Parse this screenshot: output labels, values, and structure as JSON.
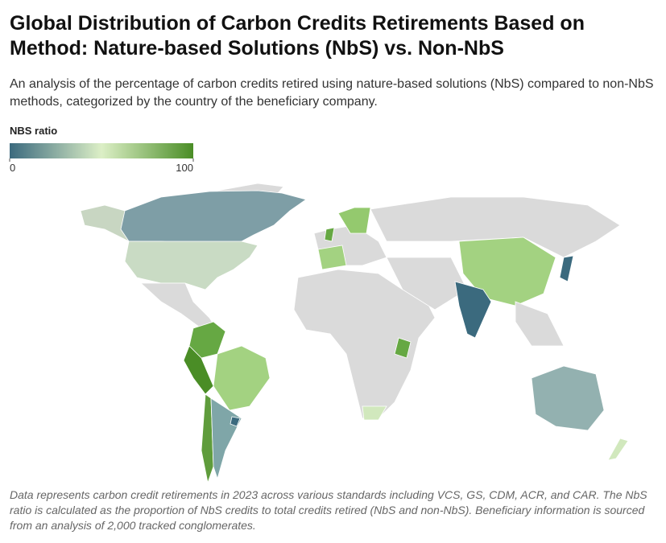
{
  "header": {
    "title": "Global Distribution of Carbon Credits Retirements Based on Method: Nature-based Solutions (NbS) vs. Non-NbS",
    "subtitle": "An analysis of the percentage of carbon credits retired using nature-based solutions (NbS) compared to non-NbS methods, categorized by the country of the beneficiary company."
  },
  "legend": {
    "title": "NBS ratio",
    "min": 0,
    "max": 100,
    "colors": [
      "#3b6a7e",
      "#dcefc6",
      "#4a8d26"
    ]
  },
  "footnote": "Data represents carbon credit retirements in 2023 across various standards including VCS, GS, CDM, ACR, and CAR. The NbS ratio is calculated as the proportion of NbS credits to total credits retired (NbS and non-NbS). Beneficiary information is sourced from an analysis of 2,000 tracked conglomerates."
}
